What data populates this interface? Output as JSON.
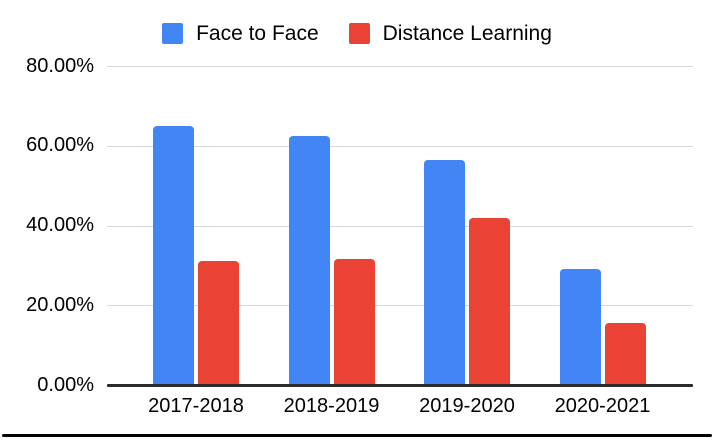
{
  "chart_data": {
    "type": "bar",
    "title": "",
    "xlabel": "",
    "ylabel": "",
    "categories": [
      "2017-2018",
      "2018-2019",
      "2019-2020",
      "2020-2021"
    ],
    "series": [
      {
        "name": "Face to Face",
        "color": "#4285F4",
        "values": [
          65,
          62.5,
          56.5,
          29
        ]
      },
      {
        "name": "Distance Learning",
        "color": "#EA4335",
        "values": [
          31,
          31.5,
          42,
          15.5
        ]
      }
    ],
    "value_unit": "percent",
    "ylim": [
      0,
      80
    ],
    "yticks": {
      "values": [
        0,
        20,
        40,
        60,
        80
      ],
      "labels": [
        "0.00%",
        "20.00%",
        "40.00%",
        "60.00%",
        "80.00%"
      ]
    },
    "grid": true,
    "gridline_color": "#d9d9d9",
    "axis_line_color": "#2b2b2b",
    "legend_position": "top"
  }
}
